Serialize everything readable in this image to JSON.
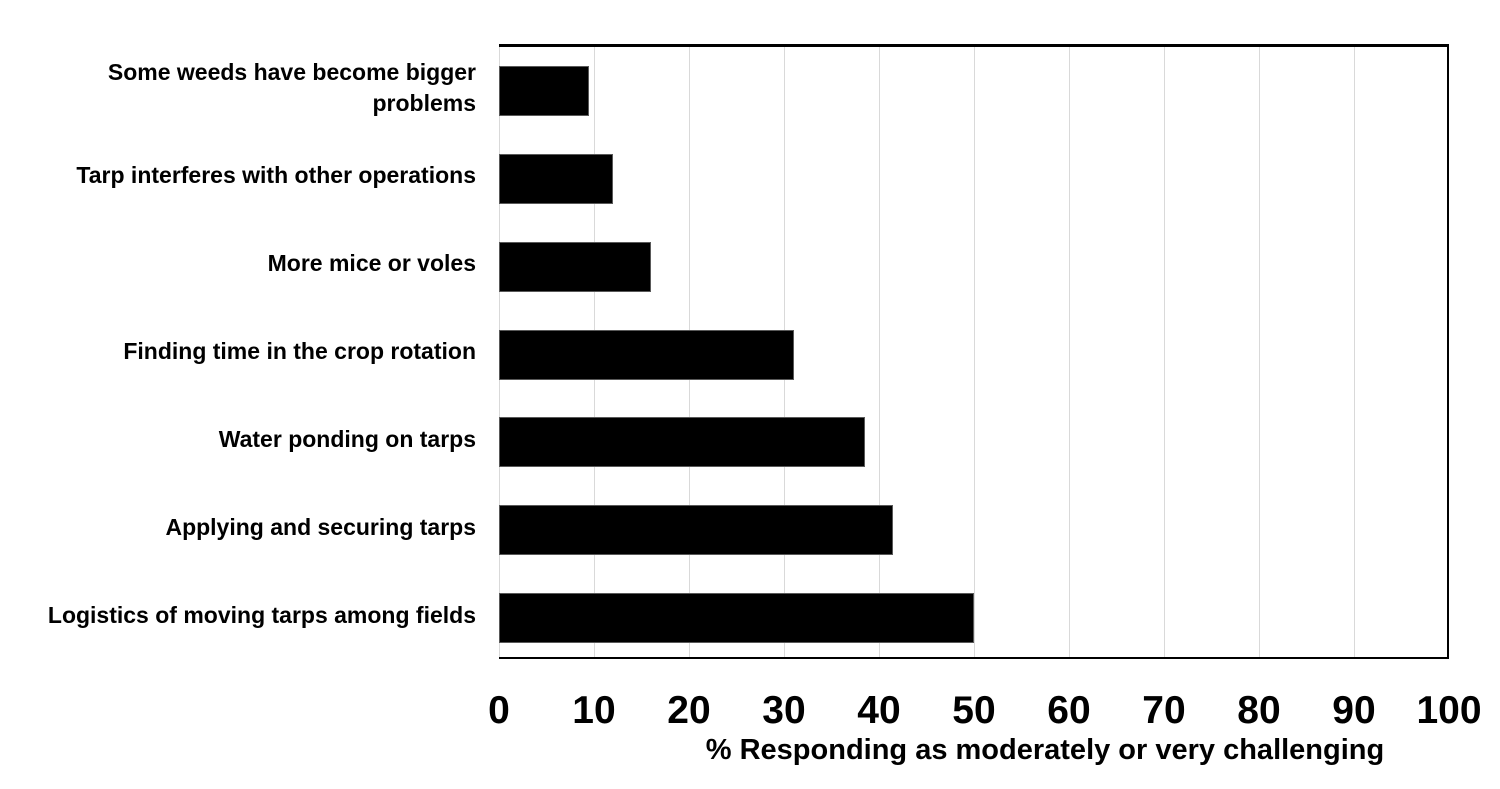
{
  "chart_data": {
    "type": "bar",
    "orientation": "horizontal",
    "title": "",
    "categories": [
      "Some weeds have become bigger problems",
      "Tarp interferes with other operations",
      "More mice or voles",
      "Finding time in the crop rotation",
      "Water ponding on tarps",
      "Applying and securing tarps",
      "Logistics of moving tarps among fields"
    ],
    "values": [
      9.5,
      12,
      16,
      31,
      38.5,
      41.5,
      50
    ],
    "xlabel": "% Responding as moderately or very challenging",
    "ylabel": "",
    "xlim": [
      0,
      100
    ],
    "xticks": [
      0,
      10,
      20,
      30,
      40,
      50,
      60,
      70,
      80,
      90,
      100
    ],
    "grid": "vertical",
    "legend": "none",
    "colors": {
      "bar_fill": "#000000",
      "bar_border": "#595959",
      "gridline": "#d9d9d9",
      "plot_border": "#000000",
      "text": "#000000",
      "background": "#ffffff"
    }
  }
}
